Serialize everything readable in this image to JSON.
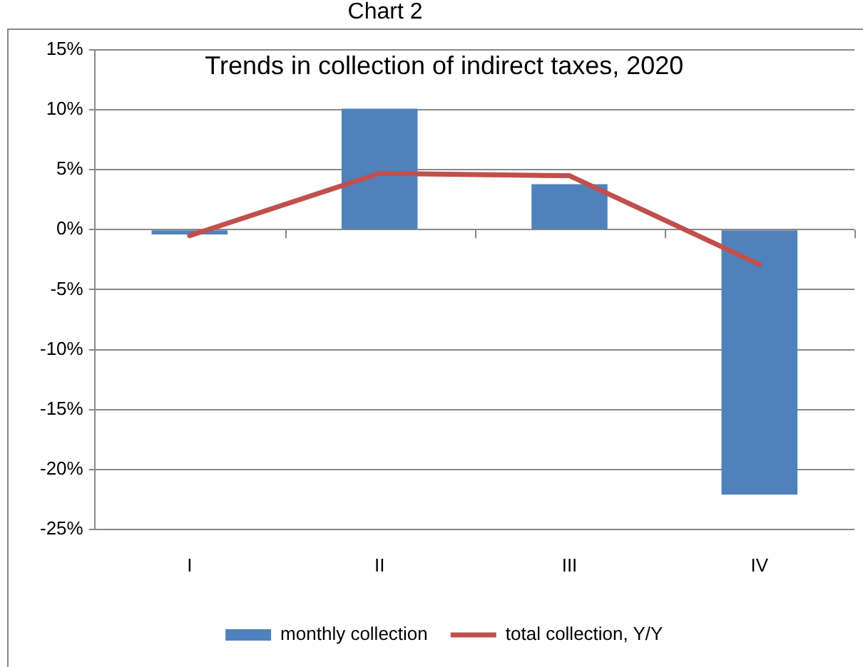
{
  "chart_data": {
    "type": "bar",
    "title": "Trends in collection of indirect taxes, 2020",
    "annotations": [
      "Chart 2"
    ],
    "categories": [
      "I",
      "II",
      "III",
      "IV"
    ],
    "series": [
      {
        "name": "monthly collection",
        "color": "#4f81bd",
        "values": [
          -0.4,
          10.1,
          3.8,
          -22.1
        ]
      },
      {
        "name": "total collection, Y/Y",
        "type": "line",
        "color": "#c0504d",
        "values": [
          -0.5,
          4.7,
          4.5,
          -2.9
        ]
      }
    ],
    "ylim": [
      -25,
      15
    ],
    "yticks": [
      {
        "value": -25,
        "label": "-25%"
      },
      {
        "value": -20,
        "label": "-20%"
      },
      {
        "value": -15,
        "label": "-15%"
      },
      {
        "value": -10,
        "label": "-10%"
      },
      {
        "value": -5,
        "label": "-5%"
      },
      {
        "value": 0,
        "label": "0%"
      },
      {
        "value": 5,
        "label": "5%"
      },
      {
        "value": 10,
        "label": "10%"
      },
      {
        "value": 15,
        "label": "15%"
      }
    ],
    "grid": "y",
    "legend": "bottom",
    "marker": "none"
  }
}
